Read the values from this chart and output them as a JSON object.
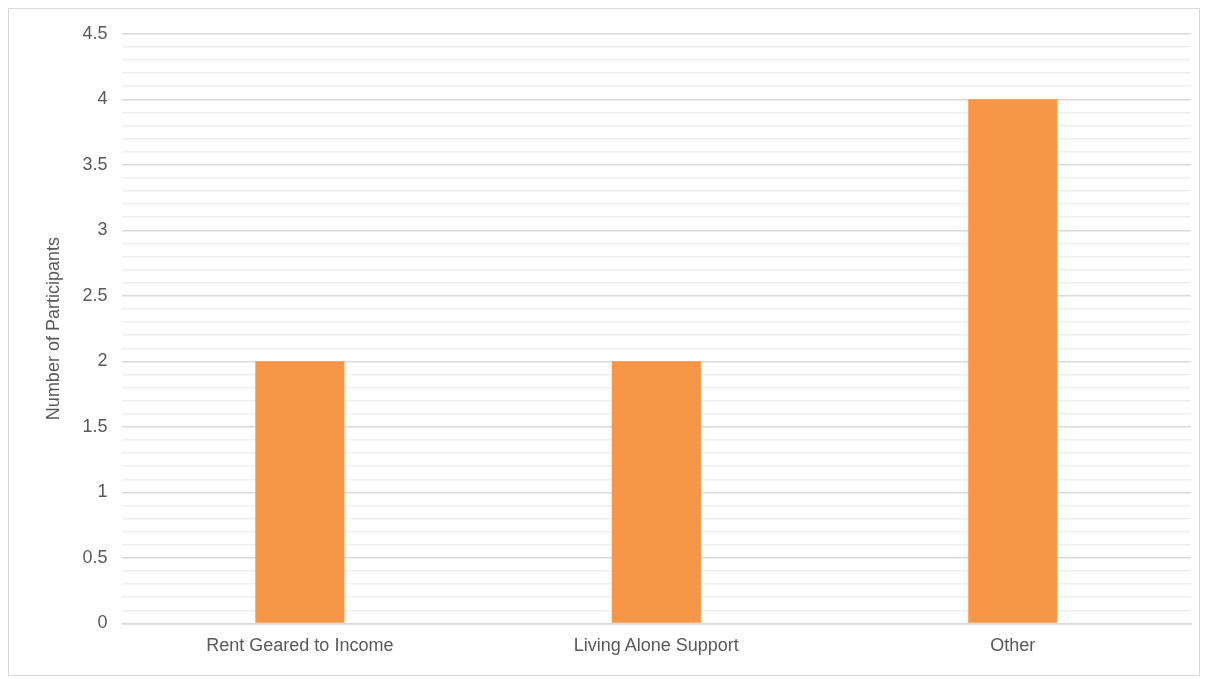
{
  "chart_data": {
    "type": "bar",
    "ylabel": "Number of Participants",
    "categories": [
      "Rent Geared to Income",
      "Living Alone Support",
      "Other"
    ],
    "values": [
      2,
      2,
      4
    ],
    "color": "#f79646",
    "ylim": [
      0,
      4.5
    ],
    "yticks": [
      0,
      {
        "value": 0.1,
        "label": null
      },
      {
        "value": 0.2,
        "label": null
      },
      {
        "value": 0.3,
        "label": null
      },
      {
        "value": 0.4,
        "label": null
      },
      0.5,
      {
        "value": 0.6,
        "label": null
      },
      {
        "value": 0.7,
        "label": null
      },
      {
        "value": 0.8,
        "label": null
      },
      {
        "value": 0.9,
        "label": null
      },
      1,
      {
        "value": 1.1,
        "label": null
      },
      {
        "value": 1.2,
        "label": null
      },
      {
        "value": 1.3,
        "label": null
      },
      {
        "value": 1.4,
        "label": null
      },
      1.5,
      {
        "value": 1.6,
        "label": null
      },
      {
        "value": 1.7,
        "label": null
      },
      {
        "value": 1.8,
        "label": null
      },
      {
        "value": 1.9,
        "label": null
      },
      2,
      {
        "value": 2.1,
        "label": null
      },
      {
        "value": 2.2,
        "label": null
      },
      {
        "value": 2.3,
        "label": null
      },
      {
        "value": 2.4,
        "label": null
      },
      2.5,
      {
        "value": 2.6,
        "label": null
      },
      {
        "value": 2.7,
        "label": null
      },
      {
        "value": 2.8,
        "label": null
      },
      {
        "value": 2.9,
        "label": null
      },
      3,
      {
        "value": 3.1,
        "label": null
      },
      {
        "value": 3.2,
        "label": null
      },
      {
        "value": 3.3,
        "label": null
      },
      {
        "value": 3.4,
        "label": null
      },
      3.5,
      {
        "value": 3.6,
        "label": null
      },
      {
        "value": 3.7,
        "label": null
      },
      {
        "value": 3.8,
        "label": null
      },
      {
        "value": 3.9,
        "label": null
      },
      4,
      {
        "value": 4.1,
        "label": null
      },
      {
        "value": 4.2,
        "label": null
      },
      {
        "value": 4.3,
        "label": null
      },
      {
        "value": 4.4,
        "label": null
      },
      4.5
    ],
    "grid": "y"
  }
}
